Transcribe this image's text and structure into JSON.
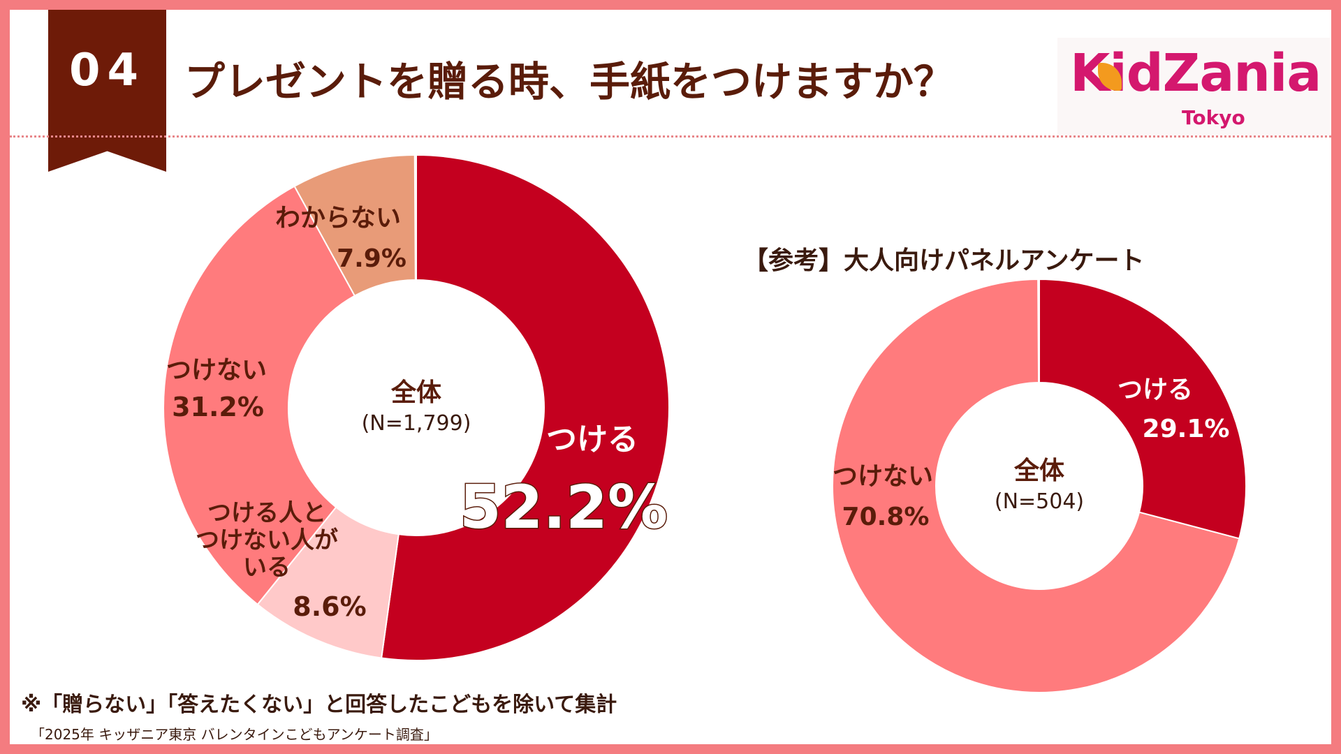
{
  "header": {
    "badge_number": "04",
    "title": "プレゼントを贈る時、手紙をつけますか？"
  },
  "logo": {
    "brand_k": "K",
    "brand_rest": "idZania",
    "sub": "Tokyo"
  },
  "colors": {
    "tsukeru": "#c4001f",
    "tsukenai": "#ff7b7d",
    "both": "#ffc9c9",
    "unknown": "#e89b78",
    "text": "#5a1c0a"
  },
  "chart_data": [
    {
      "type": "pie",
      "variant": "donut",
      "title": "全体",
      "n_label": "(N=1,799)",
      "slices": [
        {
          "label": "つける",
          "value": 52.2,
          "display": "52.2%"
        },
        {
          "label": "つける人と\nつけない人が\nいる",
          "value": 8.6,
          "display": "8.6%"
        },
        {
          "label": "つけない",
          "value": 31.2,
          "display": "31.2%"
        },
        {
          "label": "わからない",
          "value": 7.9,
          "display": "7.9%"
        }
      ]
    },
    {
      "type": "pie",
      "variant": "donut",
      "heading": "【参考】大人向けパネルアンケート",
      "title": "全体",
      "n_label": "(N=504)",
      "slices": [
        {
          "label": "つける",
          "value": 29.1,
          "display": "29.1%"
        },
        {
          "label": "つけない",
          "value": 70.8,
          "display": "70.8%"
        }
      ]
    }
  ],
  "footnote": "※「贈らない」「答えたくない」と回答したこどもを除いて集計",
  "source": "「2025年 キッザニア東京 バレンタインこどもアンケート調査」"
}
